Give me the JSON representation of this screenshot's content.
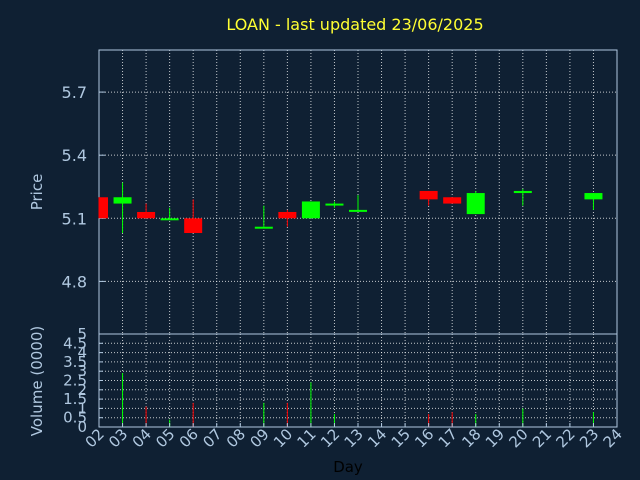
{
  "chart_data": [
    {
      "type": "candlestick",
      "title": "LOAN - last updated 23/06/2025",
      "ylabel": "Price",
      "ylim": [
        4.55,
        5.9
      ],
      "yticks": [
        "4.8",
        "5.1",
        "5.4",
        "5.7"
      ],
      "grid": true,
      "x": [
        "02",
        "03",
        "04",
        "05",
        "06",
        "07",
        "08",
        "09",
        "10",
        "11",
        "12",
        "13",
        "14",
        "15",
        "16",
        "17",
        "18",
        "19",
        "20",
        "21",
        "22",
        "23",
        "24"
      ],
      "candles": [
        {
          "day": "02",
          "open": 5.2,
          "close": 5.1,
          "high": 5.2,
          "low": 5.1
        },
        {
          "day": "03",
          "open": 5.17,
          "close": 5.2,
          "high": 5.27,
          "low": 5.03
        },
        {
          "day": "04",
          "open": 5.13,
          "close": 5.1,
          "high": 5.17,
          "low": 5.1
        },
        {
          "day": "05",
          "open": 5.1,
          "close": 5.1,
          "high": 5.15,
          "low": 5.1
        },
        {
          "day": "06",
          "open": 5.1,
          "close": 5.03,
          "high": 5.19,
          "low": 5.03
        },
        {
          "day": "09",
          "open": 5.06,
          "close": 5.06,
          "high": 5.16,
          "low": 5.06
        },
        {
          "day": "10",
          "open": 5.13,
          "close": 5.1,
          "high": 5.14,
          "low": 5.06
        },
        {
          "day": "11",
          "open": 5.1,
          "close": 5.18,
          "high": 5.18,
          "low": 5.1
        },
        {
          "day": "12",
          "open": 5.17,
          "close": 5.17,
          "high": 5.18,
          "low": 5.15
        },
        {
          "day": "13",
          "open": 5.14,
          "close": 5.14,
          "high": 5.21,
          "low": 5.14
        },
        {
          "day": "16",
          "open": 5.23,
          "close": 5.19,
          "high": 5.23,
          "low": 5.16
        },
        {
          "day": "17",
          "open": 5.2,
          "close": 5.17,
          "high": 5.2,
          "low": 5.17
        },
        {
          "day": "18",
          "open": 5.12,
          "close": 5.22,
          "high": 5.23,
          "low": 5.12
        },
        {
          "day": "20",
          "open": 5.22,
          "close": 5.23,
          "high": 5.24,
          "low": 5.16
        },
        {
          "day": "23",
          "open": 5.19,
          "close": 5.22,
          "high": 5.22,
          "low": 5.14
        }
      ]
    },
    {
      "type": "bar",
      "ylabel": "Volume (0000)",
      "xlabel": "Day",
      "ylim": [
        0,
        5
      ],
      "yticks": [
        "0",
        "0.5",
        "1",
        "1.5",
        "2",
        "2.5",
        "3",
        "3.5",
        "4",
        "4.5",
        "5"
      ],
      "grid": true,
      "volumes": [
        {
          "day": "03",
          "value": 2.9,
          "color": "#00ff00"
        },
        {
          "day": "04",
          "value": 1.1,
          "color": "#ff0000"
        },
        {
          "day": "05",
          "value": 0.4,
          "color": "#00ff00"
        },
        {
          "day": "06",
          "value": 1.3,
          "color": "#ff0000"
        },
        {
          "day": "09",
          "value": 1.3,
          "color": "#00ff00"
        },
        {
          "day": "10",
          "value": 1.3,
          "color": "#ff0000"
        },
        {
          "day": "11",
          "value": 2.4,
          "color": "#00ff00"
        },
        {
          "day": "12",
          "value": 0.7,
          "color": "#00ff00"
        },
        {
          "day": "16",
          "value": 0.7,
          "color": "#ff0000"
        },
        {
          "day": "17",
          "value": 0.8,
          "color": "#ff0000"
        },
        {
          "day": "18",
          "value": 0.7,
          "color": "#00ff00"
        },
        {
          "day": "20",
          "value": 1.0,
          "color": "#00ff00"
        },
        {
          "day": "23",
          "value": 0.8,
          "color": "#00ff00"
        }
      ]
    }
  ],
  "colors": {
    "up": "#00ff00",
    "down": "#ff0000",
    "frame": "#b0c8e0",
    "background": "#0f2033"
  }
}
